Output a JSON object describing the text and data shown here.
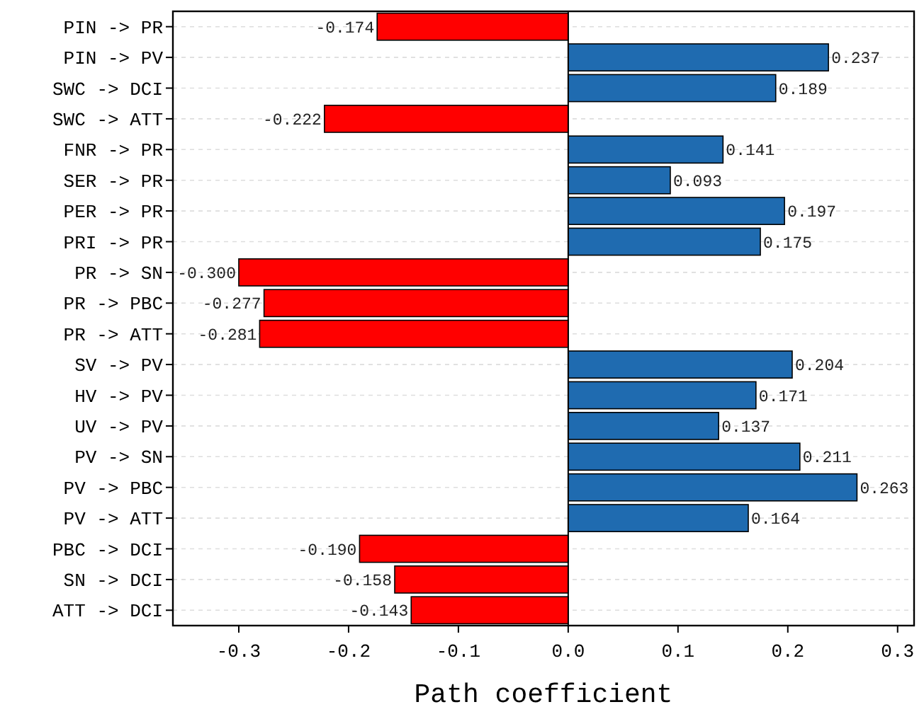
{
  "chart_data": {
    "type": "bar",
    "orientation": "horizontal",
    "xlabel": "Path coefficient",
    "categories": [
      "PIN -> PR",
      "PIN -> PV",
      "SWC -> DCI",
      "SWC -> ATT",
      "FNR -> PR",
      "SER -> PR",
      "PER -> PR",
      "PRI -> PR",
      "PR -> SN",
      "PR -> PBC",
      "PR -> ATT",
      "SV -> PV",
      "HV -> PV",
      "UV -> PV",
      "PV -> SN",
      "PV -> PBC",
      "PV -> ATT",
      "PBC -> DCI",
      "SN -> DCI",
      "ATT -> DCI"
    ],
    "values": [
      -0.174,
      0.237,
      0.189,
      -0.222,
      0.141,
      0.093,
      0.197,
      0.175,
      -0.3,
      -0.277,
      -0.281,
      0.204,
      0.171,
      0.137,
      0.211,
      0.263,
      0.164,
      -0.19,
      -0.158,
      -0.143
    ],
    "value_labels": [
      "-0.174",
      "0.237",
      "0.189",
      "-0.222",
      "0.141",
      "0.093",
      "0.197",
      "0.175",
      "-0.300",
      "-0.277",
      "-0.281",
      "0.204",
      "0.171",
      "0.137",
      "0.211",
      "0.263",
      "0.164",
      "-0.190",
      "-0.158",
      "-0.143"
    ],
    "colors": [
      "#ff0000",
      "#1f6bb0",
      "#1f6bb0",
      "#ff0000",
      "#1f6bb0",
      "#1f6bb0",
      "#1f6bb0",
      "#1f6bb0",
      "#ff0000",
      "#ff0000",
      "#ff0000",
      "#1f6bb0",
      "#1f6bb0",
      "#1f6bb0",
      "#1f6bb0",
      "#1f6bb0",
      "#1f6bb0",
      "#ff0000",
      "#ff0000",
      "#ff0000"
    ],
    "xlim": [
      -0.36,
      0.315
    ],
    "xticks": [
      -0.3,
      -0.2,
      -0.1,
      {
        "value": 0,
        "label": "0.0"
      },
      0.1,
      0.2,
      0.3
    ],
    "grid": "y"
  }
}
